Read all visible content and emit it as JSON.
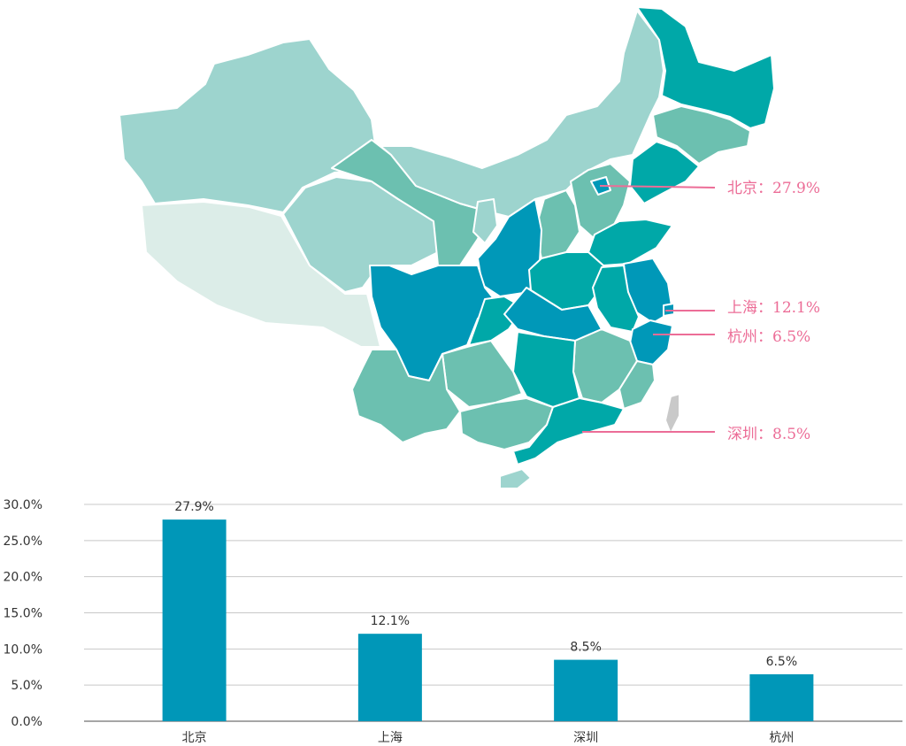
{
  "colors": {
    "accent": "#0097b8",
    "callout": "#ec6d97",
    "grid": "#c8c8c8",
    "axis": "#888888",
    "map_light": "#9dd4ce",
    "map_pale": "#dcede8",
    "map_mid": "#6cc0b0",
    "map_teal": "#00a8a8",
    "map_blue": "#0098b8",
    "map_gray": "#c9c9c9"
  },
  "map": {
    "callouts": [
      {
        "city": "北京",
        "value": "27.9%"
      },
      {
        "city": "上海",
        "value": "12.1%"
      },
      {
        "city": "杭州",
        "value": "6.5%"
      },
      {
        "city": "深圳",
        "value": "8.5%"
      }
    ],
    "separator": "："
  },
  "chart_data": {
    "type": "bar",
    "categories": [
      "北京",
      "上海",
      "深圳",
      "杭州"
    ],
    "values": [
      27.9,
      12.1,
      8.5,
      6.5
    ],
    "data_labels": [
      "27.9%",
      "12.1%",
      "8.5%",
      "6.5%"
    ],
    "y_ticks": [
      "30.0%",
      "25.0%",
      "20.0%",
      "15.0%",
      "10.0%",
      "5.0%",
      "0.0%"
    ],
    "ylim": [
      0,
      30
    ],
    "grid": true,
    "title": "",
    "xlabel": "",
    "ylabel": ""
  }
}
